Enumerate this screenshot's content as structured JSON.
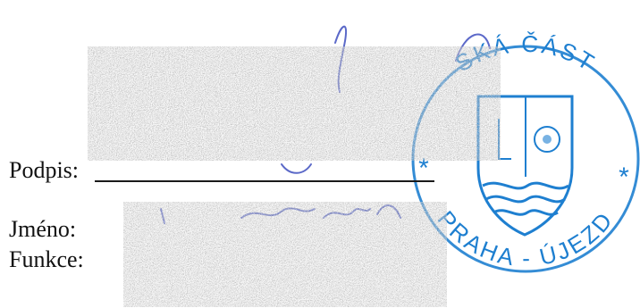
{
  "form": {
    "signature_label": "Podpis:",
    "name_label": "Jméno:",
    "function_label": "Funkce:"
  },
  "stamp": {
    "top_text": "SKÁ ČÁST",
    "bottom_text": "PRAHA - ÚJEZD",
    "star_glyph": "*",
    "ink_color": "#1e7fd0"
  },
  "signature": {
    "ink_color": "#3f4fbf"
  },
  "redaction": {
    "style": "noise"
  }
}
